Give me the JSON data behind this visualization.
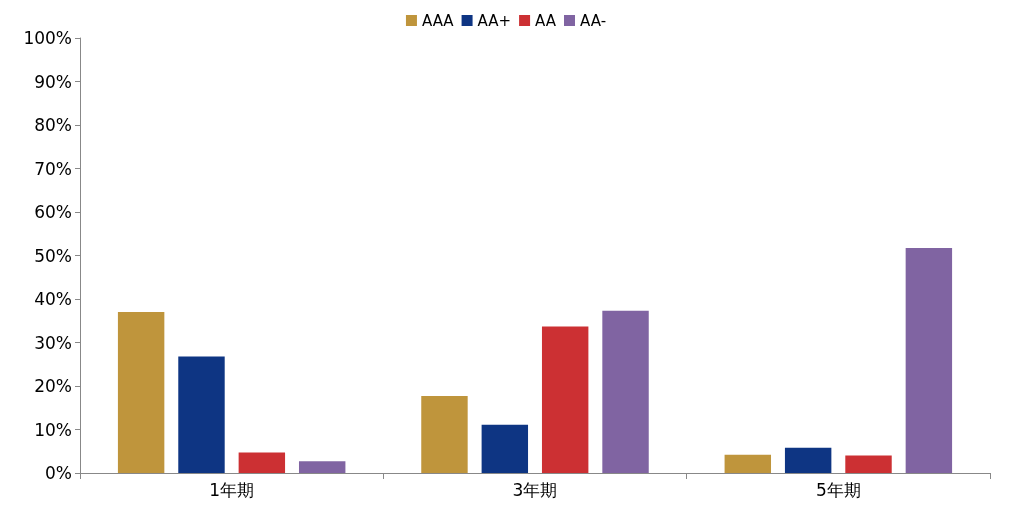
{
  "chart_data": {
    "type": "bar",
    "categories": [
      "1年期",
      "3年期",
      "5年期"
    ],
    "series": [
      {
        "name": "AAA",
        "color": "#bf953c",
        "values": [
          37.0,
          17.7,
          4.2
        ]
      },
      {
        "name": "AA+",
        "color": "#0e3583",
        "values": [
          26.8,
          11.1,
          5.8
        ]
      },
      {
        "name": "AA",
        "color": "#cc3033",
        "values": [
          4.7,
          33.7,
          4.0
        ]
      },
      {
        "name": "AA-",
        "color": "#8064a2",
        "values": [
          2.7,
          37.3,
          51.7
        ]
      }
    ],
    "ylim": [
      0,
      100
    ],
    "yticks": [
      {
        "value": 0,
        "label": "0%"
      },
      {
        "value": 10,
        "label": "10%"
      },
      {
        "value": 20,
        "label": "20%"
      },
      {
        "value": 30,
        "label": "30%"
      },
      {
        "value": 40,
        "label": "40%"
      },
      {
        "value": 50,
        "label": "50%"
      },
      {
        "value": 60,
        "label": "60%"
      },
      {
        "value": 70,
        "label": "70%"
      },
      {
        "value": 80,
        "label": "80%"
      },
      {
        "value": 90,
        "label": "90%"
      },
      {
        "value": 100,
        "label": "100%"
      }
    ],
    "grid": false,
    "legend": "top"
  }
}
